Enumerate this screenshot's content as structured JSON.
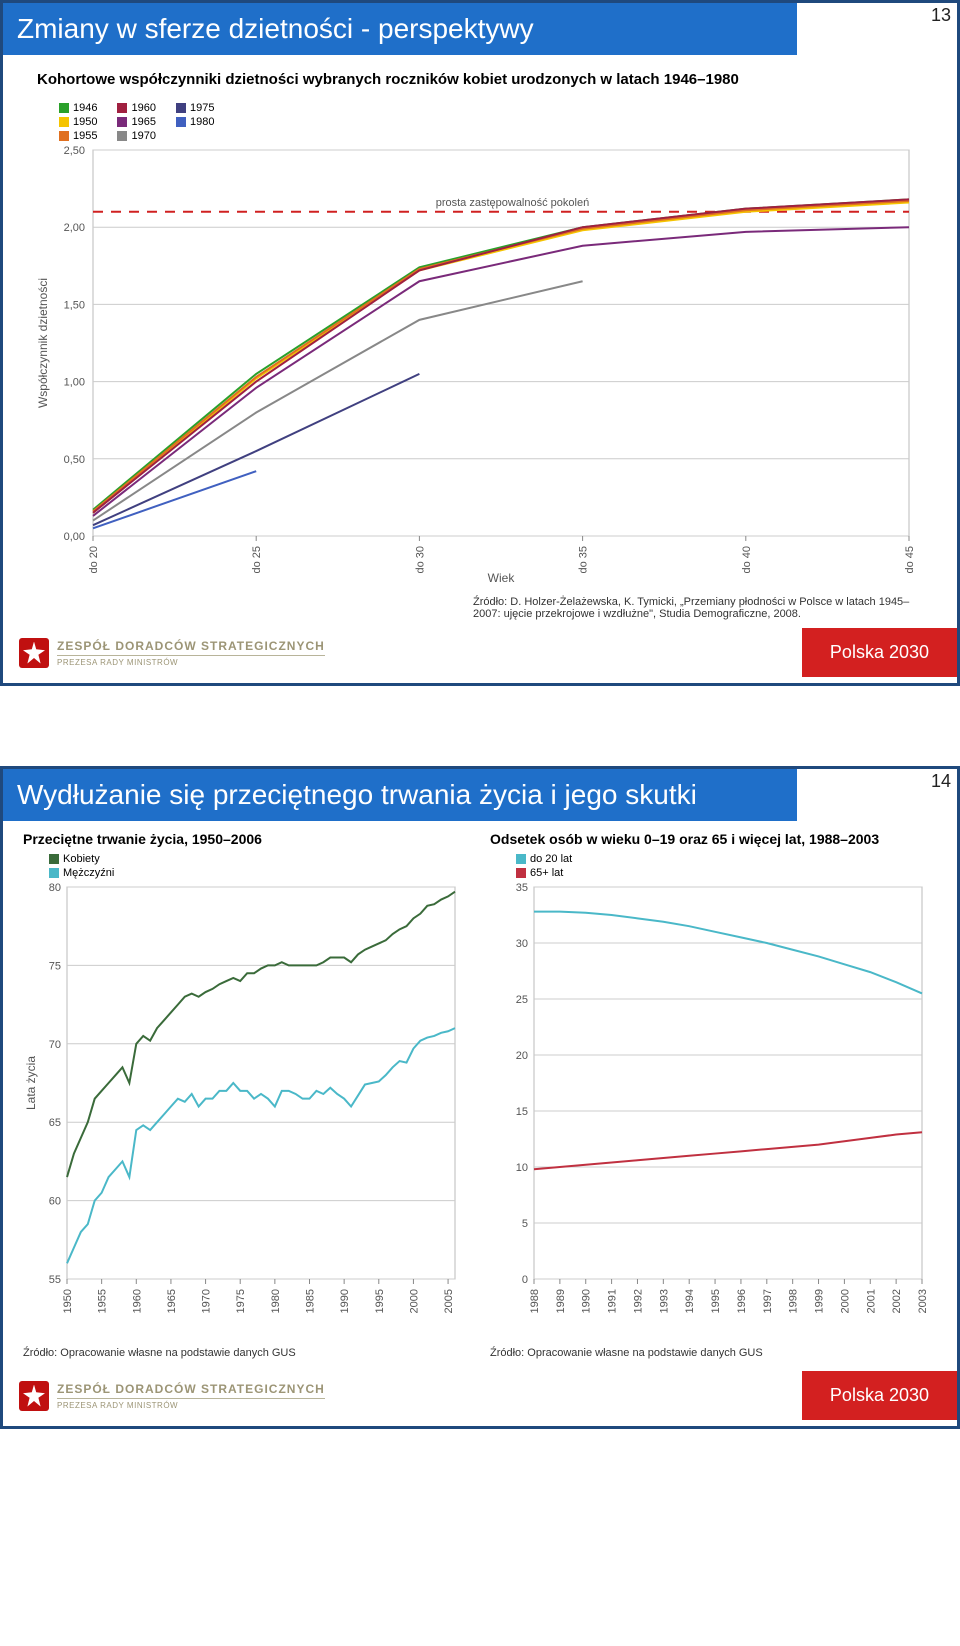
{
  "slide1": {
    "page_num": "13",
    "title": "Zmiany w sferze dzietności - perspektywy",
    "subtitle": "Kohortowe współczynniki dzietności wybranych roczników kobiet urodzonych w latach 1946–1980",
    "source_line1": "Źródło: D. Holzer-Żelażewska, K. Tymicki, „Przemiany płodności w Polsce w latach 1945–2007: ujęcie przekrojowe i wzdłużne\", Studia Demograficzne, 2008.",
    "footer_top": "ZESPÓŁ DORADCÓW STRATEGICZNYCH",
    "footer_bottom": "PREZESA RADY MINISTRÓW",
    "badge_a": "Polska ",
    "badge_b": "2030",
    "chart": {
      "type": "line",
      "legend": [
        {
          "label": "1946",
          "color": "#2aa02a"
        },
        {
          "label": "1950",
          "color": "#f5c400"
        },
        {
          "label": "1955",
          "color": "#e07020"
        },
        {
          "label": "1960",
          "color": "#a02040"
        },
        {
          "label": "1965",
          "color": "#7a2a7a"
        },
        {
          "label": "1970",
          "color": "#888888"
        },
        {
          "label": "1975",
          "color": "#404080"
        },
        {
          "label": "1980",
          "color": "#4060c0"
        }
      ],
      "ytick_labels": [
        "0,00",
        "0,50",
        "1,00",
        "1,50",
        "2,00",
        "2,50"
      ],
      "ytick_vals": [
        0,
        0.5,
        1.0,
        1.5,
        2.0,
        2.5
      ],
      "xtick_labels": [
        "do 20",
        "do 25",
        "do 30",
        "do 35",
        "do 40",
        "do 45"
      ],
      "xtick_vals": [
        20,
        25,
        30,
        35,
        40,
        45
      ],
      "xlabel": "Wiek",
      "ylabel": "Współczynnik dzietności",
      "replacement_label": "prosta zastępowalność pokoleń",
      "replacement_y": 2.1,
      "replacement_color": "#d02020",
      "grid_color": "#cccccc",
      "background": "#ffffff",
      "series": {
        "1946": [
          [
            20,
            0.17
          ],
          [
            25,
            1.05
          ],
          [
            30,
            1.74
          ],
          [
            35,
            2.0
          ],
          [
            40,
            2.12
          ],
          [
            45,
            2.18
          ]
        ],
        "1950": [
          [
            20,
            0.15
          ],
          [
            25,
            1.02
          ],
          [
            30,
            1.72
          ],
          [
            35,
            1.98
          ],
          [
            40,
            2.1
          ],
          [
            45,
            2.16
          ]
        ],
        "1955": [
          [
            20,
            0.16
          ],
          [
            25,
            1.03
          ],
          [
            30,
            1.73
          ],
          [
            35,
            1.99
          ],
          [
            40,
            2.11
          ],
          [
            45,
            2.17
          ]
        ],
        "1960": [
          [
            20,
            0.15
          ],
          [
            25,
            1.0
          ],
          [
            30,
            1.72
          ],
          [
            35,
            2.0
          ],
          [
            40,
            2.12
          ],
          [
            45,
            2.18
          ]
        ],
        "1965": [
          [
            20,
            0.13
          ],
          [
            25,
            0.96
          ],
          [
            30,
            1.65
          ],
          [
            35,
            1.88
          ],
          [
            40,
            1.97
          ],
          [
            45,
            2.0
          ]
        ],
        "1970": [
          [
            20,
            0.1
          ],
          [
            25,
            0.8
          ],
          [
            30,
            1.4
          ],
          [
            35,
            1.65
          ]
        ],
        "1975": [
          [
            20,
            0.07
          ],
          [
            25,
            0.55
          ],
          [
            30,
            1.05
          ]
        ],
        "1980": [
          [
            20,
            0.05
          ],
          [
            25,
            0.42
          ]
        ]
      }
    }
  },
  "slide2": {
    "page_num": "14",
    "title": "Wydłużanie się przeciętnego trwania życia i jego skutki",
    "left": {
      "title": "Przeciętne trwanie życia, 1950–2006",
      "legend": [
        {
          "label": "Kobiety",
          "color": "#3a6b3a"
        },
        {
          "label": "Mężczyźni",
          "color": "#4ab8c8"
        }
      ],
      "ylabel": "Lata życia",
      "yticks": [
        55,
        60,
        65,
        70,
        75,
        80
      ],
      "xticks": [
        1950,
        1955,
        1960,
        1965,
        1970,
        1975,
        1980,
        1985,
        1990,
        1995,
        2000,
        2005
      ],
      "series": {
        "Kobiety": [
          [
            1950,
            61.5
          ],
          [
            1951,
            63
          ],
          [
            1952,
            64
          ],
          [
            1953,
            65
          ],
          [
            1954,
            66.5
          ],
          [
            1955,
            67
          ],
          [
            1956,
            67.5
          ],
          [
            1957,
            68
          ],
          [
            1958,
            68.5
          ],
          [
            1959,
            67.5
          ],
          [
            1960,
            70
          ],
          [
            1961,
            70.5
          ],
          [
            1962,
            70.2
          ],
          [
            1963,
            71
          ],
          [
            1964,
            71.5
          ],
          [
            1965,
            72
          ],
          [
            1966,
            72.5
          ],
          [
            1967,
            73
          ],
          [
            1968,
            73.2
          ],
          [
            1969,
            73
          ],
          [
            1970,
            73.3
          ],
          [
            1971,
            73.5
          ],
          [
            1972,
            73.8
          ],
          [
            1973,
            74
          ],
          [
            1974,
            74.2
          ],
          [
            1975,
            74
          ],
          [
            1976,
            74.5
          ],
          [
            1977,
            74.5
          ],
          [
            1978,
            74.8
          ],
          [
            1979,
            75
          ],
          [
            1980,
            75
          ],
          [
            1981,
            75.2
          ],
          [
            1982,
            75
          ],
          [
            1983,
            75
          ],
          [
            1984,
            75
          ],
          [
            1985,
            75
          ],
          [
            1986,
            75
          ],
          [
            1987,
            75.2
          ],
          [
            1988,
            75.5
          ],
          [
            1989,
            75.5
          ],
          [
            1990,
            75.5
          ],
          [
            1991,
            75.2
          ],
          [
            1992,
            75.7
          ],
          [
            1993,
            76
          ],
          [
            1994,
            76.2
          ],
          [
            1995,
            76.4
          ],
          [
            1996,
            76.6
          ],
          [
            1997,
            77
          ],
          [
            1998,
            77.3
          ],
          [
            1999,
            77.5
          ],
          [
            2000,
            78
          ],
          [
            2001,
            78.3
          ],
          [
            2002,
            78.8
          ],
          [
            2003,
            78.9
          ],
          [
            2004,
            79.2
          ],
          [
            2005,
            79.4
          ],
          [
            2006,
            79.7
          ]
        ],
        "Mężczyźni": [
          [
            1950,
            56
          ],
          [
            1951,
            57
          ],
          [
            1952,
            58
          ],
          [
            1953,
            58.5
          ],
          [
            1954,
            60
          ],
          [
            1955,
            60.5
          ],
          [
            1956,
            61.5
          ],
          [
            1957,
            62
          ],
          [
            1958,
            62.5
          ],
          [
            1959,
            61.5
          ],
          [
            1960,
            64.5
          ],
          [
            1961,
            64.8
          ],
          [
            1962,
            64.5
          ],
          [
            1963,
            65
          ],
          [
            1964,
            65.5
          ],
          [
            1965,
            66
          ],
          [
            1966,
            66.5
          ],
          [
            1967,
            66.3
          ],
          [
            1968,
            66.8
          ],
          [
            1969,
            66
          ],
          [
            1970,
            66.5
          ],
          [
            1971,
            66.5
          ],
          [
            1972,
            67
          ],
          [
            1973,
            67
          ],
          [
            1974,
            67.5
          ],
          [
            1975,
            67
          ],
          [
            1976,
            67
          ],
          [
            1977,
            66.5
          ],
          [
            1978,
            66.8
          ],
          [
            1979,
            66.5
          ],
          [
            1980,
            66
          ],
          [
            1981,
            67
          ],
          [
            1982,
            67
          ],
          [
            1983,
            66.8
          ],
          [
            1984,
            66.5
          ],
          [
            1985,
            66.5
          ],
          [
            1986,
            67
          ],
          [
            1987,
            66.8
          ],
          [
            1988,
            67.2
          ],
          [
            1989,
            66.8
          ],
          [
            1990,
            66.5
          ],
          [
            1991,
            66
          ],
          [
            1992,
            66.7
          ],
          [
            1993,
            67.4
          ],
          [
            1994,
            67.5
          ],
          [
            1995,
            67.6
          ],
          [
            1996,
            68
          ],
          [
            1997,
            68.5
          ],
          [
            1998,
            68.9
          ],
          [
            1999,
            68.8
          ],
          [
            2000,
            69.7
          ],
          [
            2001,
            70.2
          ],
          [
            2002,
            70.4
          ],
          [
            2003,
            70.5
          ],
          [
            2004,
            70.7
          ],
          [
            2005,
            70.8
          ],
          [
            2006,
            71
          ]
        ]
      },
      "ylim": [
        55,
        80
      ],
      "xlim": [
        1950,
        2006
      ],
      "source": "Źródło: Opracowanie własne na podstawie danych GUS"
    },
    "right": {
      "title": "Odsetek osób w wieku 0–19 oraz 65 i więcej lat, 1988–2003",
      "legend": [
        {
          "label": "do 20 lat",
          "color": "#4ab8c8"
        },
        {
          "label": "65+ lat",
          "color": "#c03040"
        }
      ],
      "yticks": [
        0,
        5,
        10,
        15,
        20,
        25,
        30,
        35
      ],
      "xticks": [
        1988,
        1989,
        1990,
        1991,
        1992,
        1993,
        1994,
        1995,
        1996,
        1997,
        1998,
        1999,
        2000,
        2001,
        2002,
        2003
      ],
      "series": {
        "do20": [
          [
            1988,
            32.8
          ],
          [
            1989,
            32.8
          ],
          [
            1990,
            32.7
          ],
          [
            1991,
            32.5
          ],
          [
            1992,
            32.2
          ],
          [
            1993,
            31.9
          ],
          [
            1994,
            31.5
          ],
          [
            1995,
            31.0
          ],
          [
            1996,
            30.5
          ],
          [
            1997,
            30.0
          ],
          [
            1998,
            29.4
          ],
          [
            1999,
            28.8
          ],
          [
            2000,
            28.1
          ],
          [
            2001,
            27.4
          ],
          [
            2002,
            26.5
          ],
          [
            2003,
            25.5
          ]
        ],
        "65plus": [
          [
            1988,
            9.8
          ],
          [
            1989,
            10.0
          ],
          [
            1990,
            10.2
          ],
          [
            1991,
            10.4
          ],
          [
            1992,
            10.6
          ],
          [
            1993,
            10.8
          ],
          [
            1994,
            11.0
          ],
          [
            1995,
            11.2
          ],
          [
            1996,
            11.4
          ],
          [
            1997,
            11.6
          ],
          [
            1998,
            11.8
          ],
          [
            1999,
            12.0
          ],
          [
            2000,
            12.3
          ],
          [
            2001,
            12.6
          ],
          [
            2002,
            12.9
          ],
          [
            2003,
            13.1
          ]
        ]
      },
      "ylim": [
        0,
        35
      ],
      "xlim": [
        1988,
        2003
      ],
      "source": "Źródło: Opracowanie własne na podstawie danych GUS"
    },
    "footer_top": "ZESPÓŁ DORADCÓW STRATEGICZNYCH",
    "footer_bottom": "PREZESA RADY MINISTRÓW",
    "badge_a": "Polska ",
    "badge_b": "2030"
  }
}
